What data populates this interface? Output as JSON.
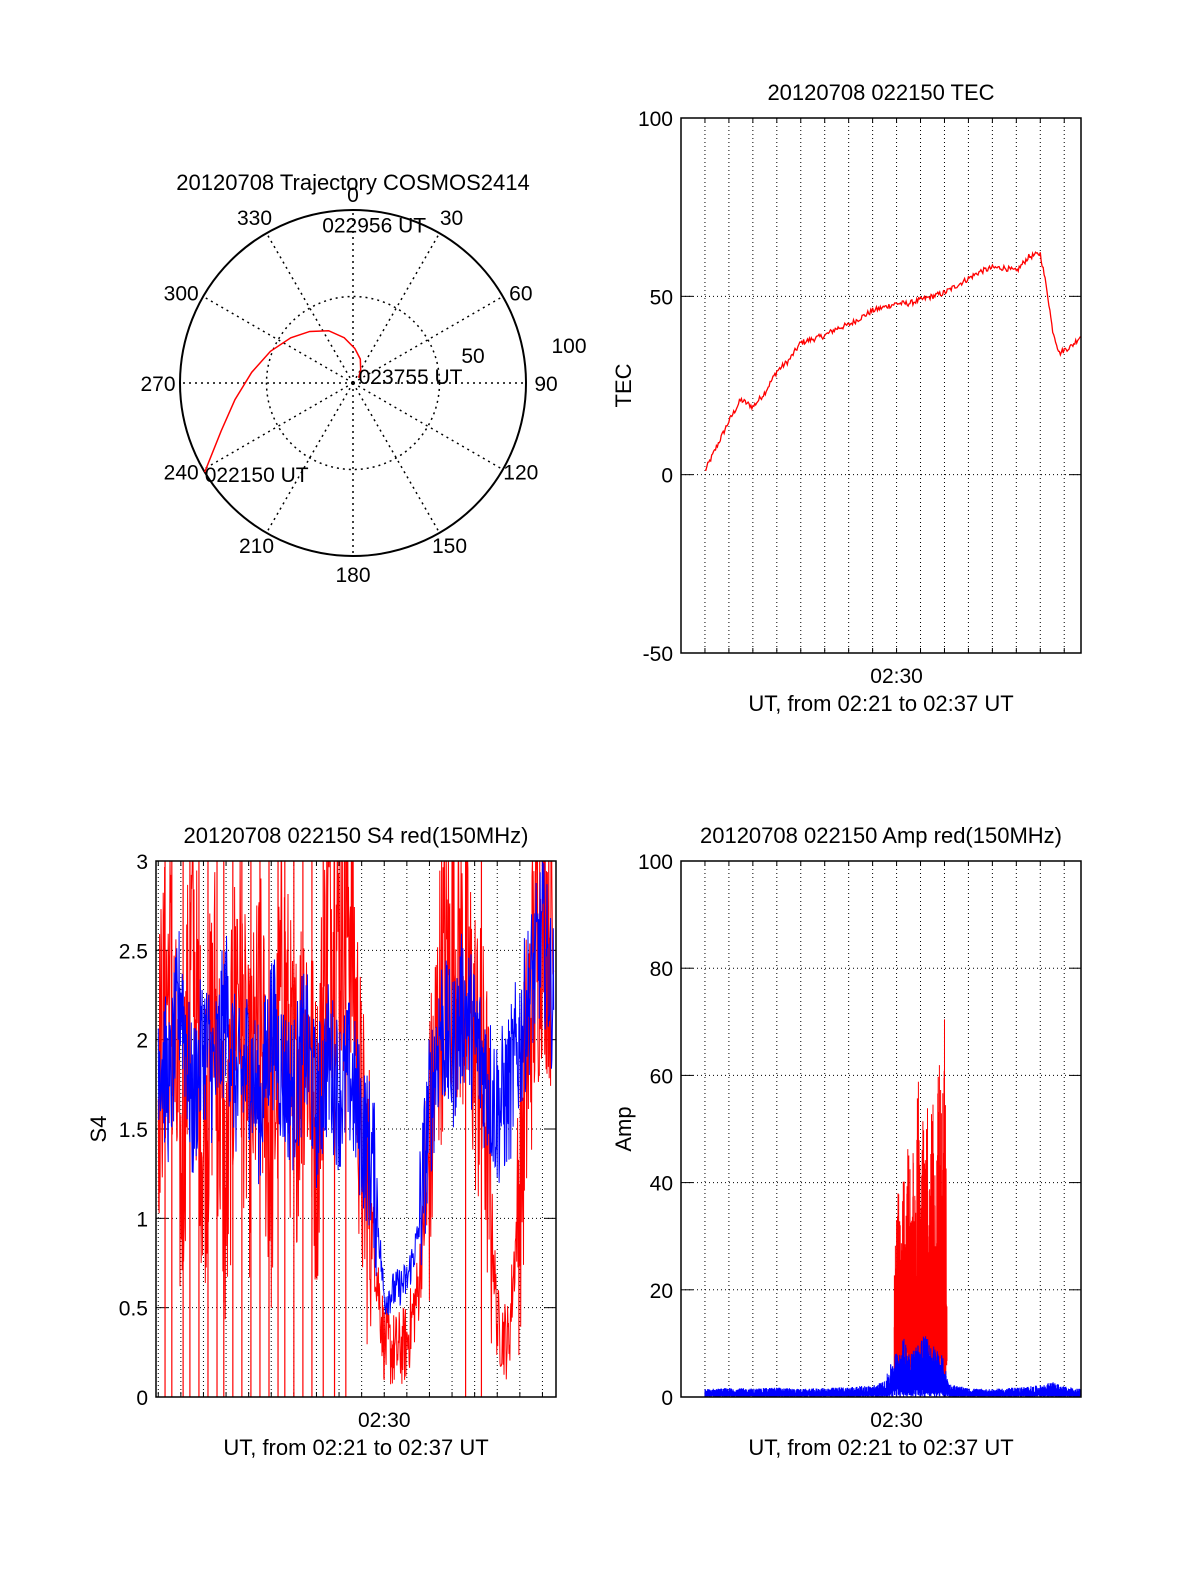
{
  "chart_data": [
    {
      "type": "polar",
      "title": "20120708 Trajectory COSMOS2414",
      "azimuth_labels": [
        "0",
        "30",
        "60",
        "90",
        "120",
        "150",
        "180",
        "210",
        "240",
        "270",
        "300",
        "330"
      ],
      "radial_labels": [
        "50",
        "100"
      ],
      "series": [
        {
          "name": "",
          "color": "#ff0000",
          "points": [
            [
              239,
              90
            ],
            [
              250,
              73
            ],
            [
              262,
              62
            ],
            [
              276,
              53
            ],
            [
              291,
              46
            ],
            [
              306,
              40
            ],
            [
              320,
              35
            ],
            [
              335,
              30
            ],
            [
              349,
              24
            ],
            [
              3,
              18
            ],
            [
              17,
              13
            ],
            [
              30,
              8
            ],
            [
              47,
              4
            ]
          ]
        }
      ],
      "annotations": [
        {
          "text": "022150 UT",
          "az": 239,
          "el": 90
        },
        {
          "text": "022956 UT",
          "az": 340,
          "el": 59
        },
        {
          "text": "023755 UT",
          "az": 47,
          "el": 4
        }
      ]
    },
    {
      "type": "line",
      "title": "20120708 022150 TEC",
      "xlabel": "UT, from 02:21 to 02:37 UT",
      "ylabel": "TEC",
      "xlim": [
        2.0,
        18.7
      ],
      "ylim": [
        -50,
        100
      ],
      "yticks": [
        -50,
        0,
        50,
        100
      ],
      "xticks": [
        {
          "value": 11,
          "label": "02:30"
        }
      ],
      "grid": true,
      "series": [
        {
          "name": "",
          "color": "#ff0000",
          "x": [
            3.0,
            3.5,
            4.0,
            4.5,
            5.0,
            5.5,
            6.0,
            6.5,
            7.0,
            7.5,
            8.0,
            8.5,
            9.0,
            9.5,
            10.0,
            10.5,
            11.0,
            11.5,
            12.0,
            12.5,
            13.0,
            13.5,
            14.0,
            14.5,
            15.0,
            15.5,
            16.0,
            16.5,
            17.0,
            17.3,
            17.5,
            17.8,
            18.0,
            18.3,
            18.7
          ],
          "y": [
            1,
            8,
            15,
            21,
            19,
            23,
            29,
            32,
            37,
            38,
            39,
            41,
            42,
            44,
            46,
            47,
            48,
            48,
            49,
            50,
            51,
            53,
            55,
            57,
            58,
            58,
            57,
            61,
            62,
            51,
            41,
            34,
            35,
            36,
            39
          ]
        }
      ]
    },
    {
      "type": "line",
      "title": "20120708 022150 S4 red(150MHz)",
      "xlabel": "UT, from 02:21 to 02:37 UT",
      "ylabel": "S4",
      "xlim": [
        0.9,
        18.6
      ],
      "ylim": [
        0,
        3
      ],
      "yticks": [
        0,
        0.5,
        1,
        1.5,
        2,
        2.5,
        3
      ],
      "xticks": [
        {
          "value": 11,
          "label": "02:30"
        }
      ],
      "grid": true,
      "series": [
        {
          "name": "",
          "color": "#ff0000",
          "x": [
            1.0,
            1.5,
            2.0,
            2.5,
            3.0,
            3.5,
            4.0,
            4.5,
            5.0,
            5.5,
            6.0,
            6.5,
            7.0,
            7.5,
            8.0,
            8.5,
            9.0,
            9.5,
            10.0,
            10.5,
            11.0,
            11.5,
            12.0,
            12.5,
            13.0,
            13.5,
            14.0,
            14.5,
            15.0,
            15.5,
            16.0,
            16.5,
            17.0,
            17.5,
            18.0,
            18.5
          ],
          "y": [
            1.8,
            2.4,
            1.2,
            2.6,
            1.4,
            2.2,
            1.0,
            2.5,
            1.5,
            2.1,
            1.3,
            2.4,
            1.6,
            2.2,
            1.4,
            2.7,
            2.6,
            2.8,
            1.4,
            0.9,
            0.3,
            0.25,
            0.3,
            0.6,
            1.3,
            2.3,
            2.5,
            2.4,
            2.0,
            1.6,
            0.4,
            0.3,
            1.2,
            2.2,
            2.8,
            2.5
          ],
          "drops_to_zero_x": [
            1.3,
            1.6,
            2.1,
            2.4,
            2.8,
            3.2,
            3.6,
            3.9,
            4.3,
            4.7,
            5.1,
            5.5,
            5.9,
            6.3,
            6.6,
            7.0,
            7.4,
            7.8,
            8.3,
            8.8,
            9.3,
            14.6,
            15.3
          ]
        },
        {
          "name": "",
          "color": "#0000ff",
          "x": [
            1.0,
            1.5,
            2.0,
            2.5,
            3.0,
            3.5,
            4.0,
            4.5,
            5.0,
            5.5,
            6.0,
            6.5,
            7.0,
            7.5,
            8.0,
            8.5,
            9.0,
            9.5,
            10.0,
            10.5,
            11.0,
            11.5,
            12.0,
            12.5,
            13.0,
            13.5,
            14.0,
            14.5,
            15.0,
            15.5,
            16.0,
            16.5,
            17.0,
            17.5,
            18.0,
            18.5
          ],
          "y": [
            2.0,
            1.7,
            2.3,
            1.6,
            2.0,
            1.8,
            2.2,
            1.7,
            1.9,
            1.6,
            2.1,
            1.8,
            1.7,
            2.0,
            1.6,
            1.9,
            1.7,
            1.8,
            1.5,
            1.3,
            0.55,
            0.6,
            0.65,
            0.9,
            1.6,
            2.1,
            1.9,
            2.2,
            2.0,
            1.8,
            1.6,
            1.7,
            2.0,
            2.3,
            2.6,
            2.2
          ]
        }
      ]
    },
    {
      "type": "line",
      "title": "20120708 022150 Amp red(150MHz)",
      "xlabel": "UT, from 02:21 to 02:37 UT",
      "ylabel": "Amp",
      "xlim": [
        2.0,
        18.7
      ],
      "ylim": [
        0,
        100
      ],
      "yticks": [
        0,
        20,
        40,
        60,
        80,
        100
      ],
      "xticks": [
        {
          "value": 11,
          "label": "02:30"
        }
      ],
      "grid": true,
      "series": [
        {
          "name": "",
          "color": "#ff0000",
          "x": [
            10.9,
            11.0,
            11.1,
            11.2,
            11.3,
            11.4,
            11.5,
            11.6,
            11.7,
            11.8,
            11.9,
            12.0,
            12.1,
            12.2,
            12.3,
            12.4,
            12.5,
            12.6,
            12.7,
            12.8,
            12.9,
            13.0,
            13.1
          ],
          "y": [
            22,
            35,
            40,
            30,
            45,
            38,
            60,
            33,
            48,
            40,
            63,
            36,
            52,
            45,
            57,
            40,
            70,
            48,
            58,
            72,
            50,
            75,
            30
          ]
        },
        {
          "name": "",
          "color": "#0000ff",
          "x": [
            3.0,
            4.0,
            5.0,
            6.0,
            7.0,
            8.0,
            9.0,
            10.0,
            10.5,
            10.9,
            11.3,
            11.7,
            12.1,
            12.5,
            12.9,
            13.2,
            14.0,
            15.0,
            16.0,
            17.0,
            17.5,
            18.0,
            18.7
          ],
          "y": [
            1.5,
            1.7,
            1.6,
            1.8,
            1.5,
            1.7,
            1.9,
            2.2,
            3.0,
            8,
            11,
            9,
            12,
            10,
            8,
            2.5,
            1.6,
            1.5,
            1.8,
            2.2,
            2.8,
            2.0,
            1.5
          ]
        }
      ]
    }
  ]
}
